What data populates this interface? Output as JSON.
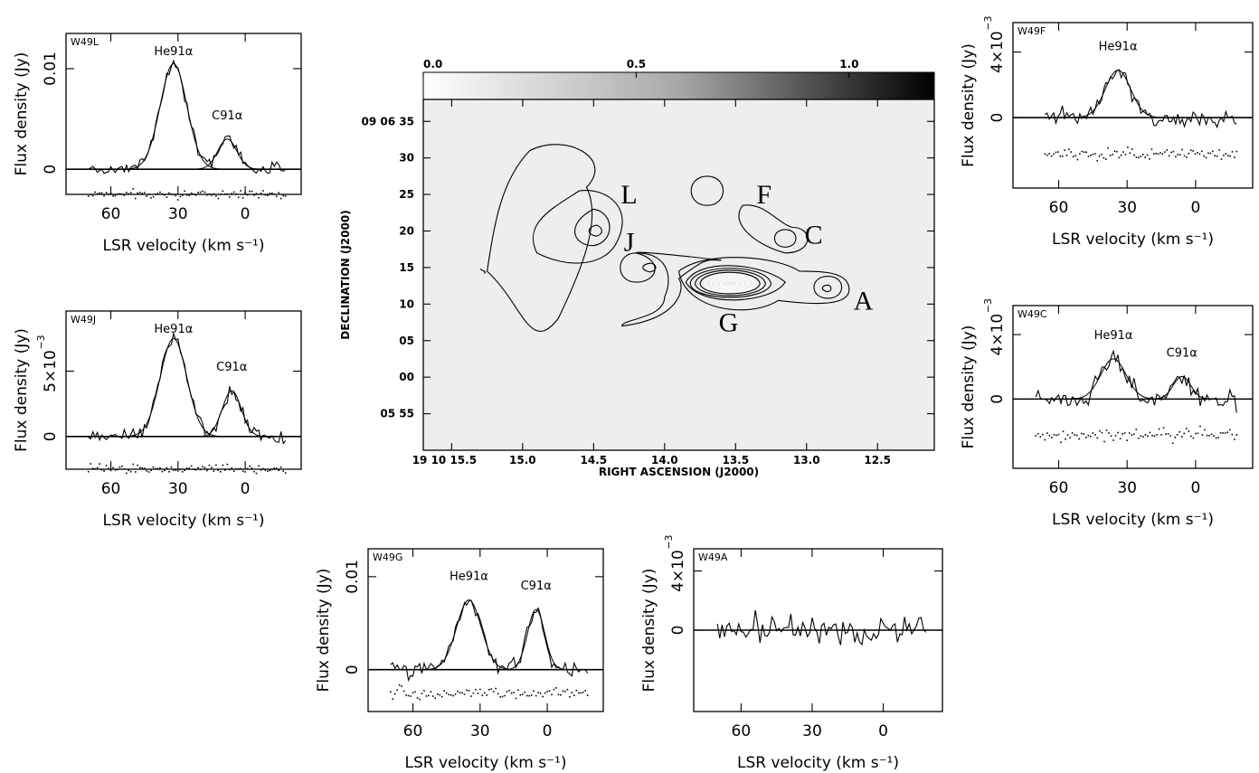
{
  "chart_data": [
    {
      "type": "line",
      "panel": "W49L",
      "xlabel": "LSR velocity (km s⁻¹)",
      "ylabel": "Flux density (Jy)",
      "xticks": [
        "60",
        "30",
        "0"
      ],
      "yticks": [
        "0",
        "0.01"
      ],
      "yexp": "",
      "xlim": [
        80,
        -25
      ],
      "ylim": [
        -0.0025,
        0.0135
      ],
      "lines": [
        {
          "label": "He91α",
          "center": 32,
          "amp": 0.0105,
          "width": 14
        },
        {
          "label": "C91α",
          "center": 8,
          "amp": 0.003,
          "width": 10
        }
      ],
      "fit": [
        [
          32,
          0.0105,
          14
        ],
        [
          8,
          0.003,
          10
        ]
      ],
      "noise": 0.0006,
      "residual_offset": -0.0025,
      "vrange": [
        70,
        -18
      ]
    },
    {
      "type": "line",
      "panel": "W49J",
      "xlabel": "LSR velocity (km s⁻¹)",
      "ylabel": "Flux density (Jy)",
      "xticks": [
        "60",
        "30",
        "0"
      ],
      "yticks": [
        "0",
        "5×10"
      ],
      "yexp": "−3",
      "xlim": [
        80,
        -25
      ],
      "ylim": [
        -0.0025,
        0.0096
      ],
      "lines": [
        {
          "label": "He91α",
          "center": 32,
          "amp": 0.0075,
          "width": 14
        },
        {
          "label": "C91α",
          "center": 6,
          "amp": 0.0035,
          "width": 10
        }
      ],
      "fit": [
        [
          32,
          0.0075,
          14
        ],
        [
          6,
          0.0035,
          10
        ]
      ],
      "noise": 0.0005,
      "residual_offset": -0.0025,
      "vrange": [
        70,
        -18
      ]
    },
    {
      "type": "line",
      "panel": "W49G",
      "xlabel": "LSR velocity (km s⁻¹)",
      "ylabel": "Flux density (Jy)",
      "xticks": [
        "60",
        "30",
        "0"
      ],
      "yticks": [
        "0",
        "0.01"
      ],
      "yexp": "",
      "xlim": [
        80,
        -25
      ],
      "ylim": [
        -0.0045,
        0.013
      ],
      "lines": [
        {
          "label": "He91α",
          "center": 35,
          "amp": 0.0075,
          "width": 13
        },
        {
          "label": "C91α",
          "center": 5,
          "amp": 0.0065,
          "width": 9
        }
      ],
      "fit": [
        [
          35,
          0.0075,
          13
        ],
        [
          5,
          0.0065,
          9
        ]
      ],
      "noise": 0.0009,
      "residual_offset": -0.0025,
      "vrange": [
        70,
        -18
      ]
    },
    {
      "type": "line",
      "panel": "W49A",
      "xlabel": "LSR velocity (km s⁻¹)",
      "ylabel": "Flux density (Jy)",
      "xticks": [
        "60",
        "30",
        "0"
      ],
      "yticks": [
        "0",
        "4×10"
      ],
      "yexp": "−3",
      "xlim": [
        80,
        -25
      ],
      "ylim": [
        -0.0055,
        0.0055
      ],
      "lines": [],
      "fit": [],
      "noise": 0.0009,
      "residual_offset": 0,
      "vrange": [
        70,
        -18
      ]
    },
    {
      "type": "line",
      "panel": "W49F",
      "xlabel": "LSR velocity (km s⁻¹)",
      "ylabel": "Flux density (Jy)",
      "xticks": [
        "60",
        "30",
        "0"
      ],
      "yticks": [
        "0",
        "4×10"
      ],
      "yexp": "−3",
      "xlim": [
        80,
        -25
      ],
      "ylim": [
        -0.0043,
        0.0058
      ],
      "lines": [
        {
          "label": "He91α",
          "center": 34,
          "amp": 0.0029,
          "width": 13
        }
      ],
      "fit": [
        [
          34,
          0.0029,
          13
        ]
      ],
      "noise": 0.0005,
      "residual_offset": -0.0022,
      "vrange": [
        66,
        -18
      ]
    },
    {
      "type": "line",
      "panel": "W49C",
      "xlabel": "LSR velocity (km s⁻¹)",
      "ylabel": "Flux density (Jy)",
      "xticks": [
        "60",
        "30",
        "0"
      ],
      "yticks": [
        "0",
        "4×10"
      ],
      "yexp": "−3",
      "xlim": [
        80,
        -25
      ],
      "ylim": [
        -0.0043,
        0.0058
      ],
      "lines": [
        {
          "label": "He91α",
          "center": 36,
          "amp": 0.0025,
          "width": 13
        },
        {
          "label": "C91α",
          "center": 6,
          "amp": 0.0014,
          "width": 9
        }
      ],
      "fit": [
        [
          36,
          0.0025,
          13
        ],
        [
          6,
          0.0014,
          9
        ]
      ],
      "noise": 0.0006,
      "residual_offset": -0.0022,
      "vrange": [
        70,
        -18
      ]
    },
    {
      "type": "heatmap",
      "xlabel": "RIGHT ASCENSION (J2000)",
      "ylabel": "DECLINATION (J2000)",
      "xticks": [
        "19 10 15.5",
        "15.0",
        "14.5",
        "14.0",
        "13.5",
        "13.0",
        "12.5"
      ],
      "xtick_values": [
        15.5,
        15.0,
        14.5,
        14.0,
        13.5,
        13.0,
        12.5
      ],
      "yticks": [
        "09 06 35",
        "30",
        "25",
        "20",
        "15",
        "10",
        "05",
        "00",
        "05 55"
      ],
      "ytick_values": [
        35,
        30,
        25,
        20,
        15,
        10,
        5,
        0,
        -5
      ],
      "xlim": [
        15.7,
        12.1
      ],
      "ylim": [
        -10,
        38
      ],
      "colorbar_ticks": [
        "0.0",
        "0.5",
        "1.0"
      ],
      "colorbar_tick_values": [
        0.0,
        0.5,
        1.0
      ],
      "colorbar_range": [
        0.0,
        1.2
      ],
      "colormap": "grayscale",
      "sources": [
        {
          "label": "L",
          "ra": 14.5,
          "dec": 20
        },
        {
          "label": "J",
          "ra": 14.1,
          "dec": 15
        },
        {
          "label": "G",
          "ra": 13.55,
          "dec": 13
        },
        {
          "label": "F",
          "ra": 13.3,
          "dec": 23
        },
        {
          "label": "C",
          "ra": 13.15,
          "dec": 19
        },
        {
          "label": "A",
          "ra": 12.85,
          "dec": 12
        }
      ],
      "label_positions": [
        {
          "label": "L",
          "ra": 14.25,
          "dec": 25
        },
        {
          "label": "J",
          "ra": 14.25,
          "dec": 18.5
        },
        {
          "label": "G",
          "ra": 13.55,
          "dec": 7.5
        },
        {
          "label": "F",
          "ra": 13.3,
          "dec": 25
        },
        {
          "label": "C",
          "ra": 12.95,
          "dec": 19.5
        },
        {
          "label": "A",
          "ra": 12.6,
          "dec": 10.5
        }
      ]
    }
  ]
}
